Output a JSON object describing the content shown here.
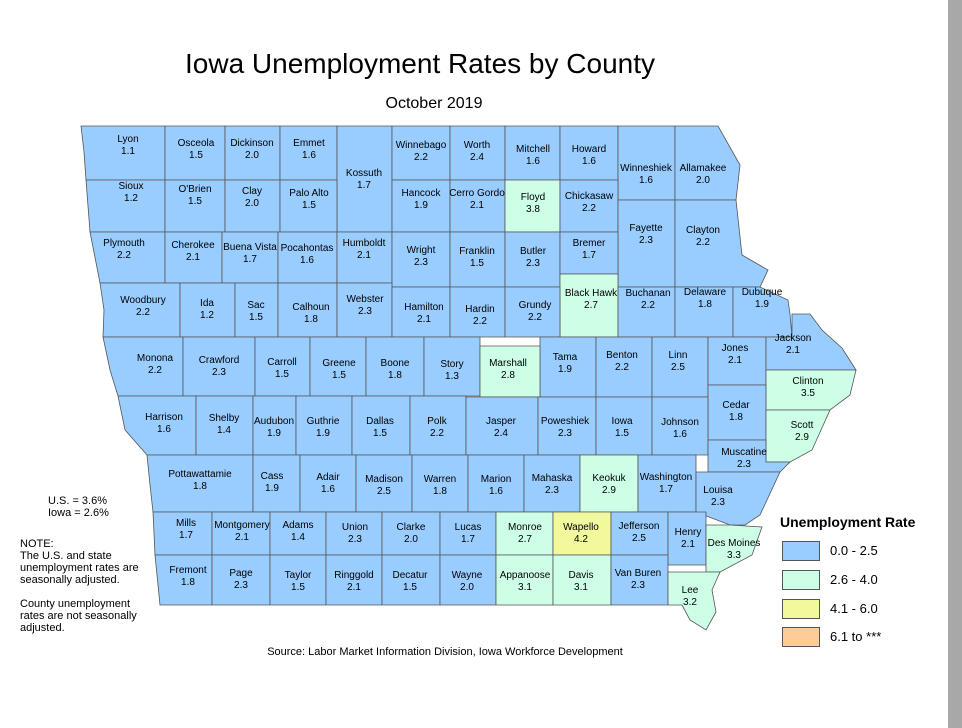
{
  "title": "Iowa Unemployment Rates by County",
  "subtitle": "October 2019",
  "rates": {
    "us": "U.S.  = 3.6%",
    "iowa": "Iowa = 2.6%"
  },
  "note": {
    "heading": "NOTE:",
    "line1": "The U.S. and state",
    "line2": "unemployment rates are",
    "line3": "seasonally adjusted.",
    "line4": "County unemployment",
    "line5": "rates are not seasonally",
    "line6": "adjusted."
  },
  "legend": {
    "title": "Unemployment Rate",
    "items": [
      {
        "label": "0.0 - 2.5",
        "color": "#99ccff"
      },
      {
        "label": "2.6 - 4.0",
        "color": "#ccffe6"
      },
      {
        "label": "4.1 - 6.0",
        "color": "#f2f99c"
      },
      {
        "label": "6.1 to ***",
        "color": "#ffcc99"
      }
    ]
  },
  "source": "Source: Labor Market Information Division, Iowa Workforce Development",
  "counties": [
    {
      "name": "Lyon",
      "value": "1.1"
    },
    {
      "name": "Osceola",
      "value": "1.5"
    },
    {
      "name": "Dickinson",
      "value": "2.0"
    },
    {
      "name": "Emmet",
      "value": "1.6"
    },
    {
      "name": "Kossuth",
      "value": "1.7"
    },
    {
      "name": "Winnebago",
      "value": "2.2"
    },
    {
      "name": "Worth",
      "value": "2.4"
    },
    {
      "name": "Mitchell",
      "value": "1.6"
    },
    {
      "name": "Howard",
      "value": "1.6"
    },
    {
      "name": "Winneshiek",
      "value": "1.6"
    },
    {
      "name": "Allamakee",
      "value": "2.0"
    },
    {
      "name": "Sioux",
      "value": "1.2"
    },
    {
      "name": "O'Brien",
      "value": "1.5"
    },
    {
      "name": "Clay",
      "value": "2.0"
    },
    {
      "name": "Palo Alto",
      "value": "1.5"
    },
    {
      "name": "Hancock",
      "value": "1.9"
    },
    {
      "name": "Cerro Gordo",
      "value": "2.1"
    },
    {
      "name": "Floyd",
      "value": "3.8"
    },
    {
      "name": "Chickasaw",
      "value": "2.2"
    },
    {
      "name": "Fayette",
      "value": "2.3"
    },
    {
      "name": "Clayton",
      "value": "2.2"
    },
    {
      "name": "Plymouth",
      "value": "2.2"
    },
    {
      "name": "Cherokee",
      "value": "2.1"
    },
    {
      "name": "Buena Vista",
      "value": "1.7"
    },
    {
      "name": "Pocahontas",
      "value": "1.6"
    },
    {
      "name": "Humboldt",
      "value": "2.1"
    },
    {
      "name": "Wright",
      "value": "2.3"
    },
    {
      "name": "Franklin",
      "value": "1.5"
    },
    {
      "name": "Butler",
      "value": "2.3"
    },
    {
      "name": "Bremer",
      "value": "1.7"
    },
    {
      "name": "Black Hawk",
      "value": "2.7"
    },
    {
      "name": "Buchanan",
      "value": "2.2"
    },
    {
      "name": "Delaware",
      "value": "1.8"
    },
    {
      "name": "Dubuque",
      "value": "1.9"
    },
    {
      "name": "Woodbury",
      "value": "2.2"
    },
    {
      "name": "Ida",
      "value": "1.2"
    },
    {
      "name": "Sac",
      "value": "1.5"
    },
    {
      "name": "Calhoun",
      "value": "1.8"
    },
    {
      "name": "Webster",
      "value": "2.3"
    },
    {
      "name": "Hamilton",
      "value": "2.1"
    },
    {
      "name": "Hardin",
      "value": "2.2"
    },
    {
      "name": "Grundy",
      "value": "2.2"
    },
    {
      "name": "Tama",
      "value": "1.9"
    },
    {
      "name": "Benton",
      "value": "2.2"
    },
    {
      "name": "Linn",
      "value": "2.5"
    },
    {
      "name": "Jones",
      "value": "2.1"
    },
    {
      "name": "Jackson",
      "value": "2.1"
    },
    {
      "name": "Monona",
      "value": "2.2"
    },
    {
      "name": "Crawford",
      "value": "2.3"
    },
    {
      "name": "Carroll",
      "value": "1.5"
    },
    {
      "name": "Greene",
      "value": "1.5"
    },
    {
      "name": "Boone",
      "value": "1.8"
    },
    {
      "name": "Story",
      "value": "1.3"
    },
    {
      "name": "Marshall",
      "value": "2.8"
    },
    {
      "name": "Clinton",
      "value": "3.5"
    },
    {
      "name": "Cedar",
      "value": "1.8"
    },
    {
      "name": "Harrison",
      "value": "1.6"
    },
    {
      "name": "Shelby",
      "value": "1.4"
    },
    {
      "name": "Audubon",
      "value": "1.9"
    },
    {
      "name": "Guthrie",
      "value": "1.9"
    },
    {
      "name": "Dallas",
      "value": "1.5"
    },
    {
      "name": "Polk",
      "value": "2.2"
    },
    {
      "name": "Jasper",
      "value": "2.4"
    },
    {
      "name": "Poweshiek",
      "value": "2.3"
    },
    {
      "name": "Iowa",
      "value": "1.5"
    },
    {
      "name": "Johnson",
      "value": "1.6"
    },
    {
      "name": "Scott",
      "value": "2.9"
    },
    {
      "name": "Muscatine",
      "value": "2.3"
    },
    {
      "name": "Pottawattamie",
      "value": "1.8"
    },
    {
      "name": "Cass",
      "value": "1.9"
    },
    {
      "name": "Adair",
      "value": "1.6"
    },
    {
      "name": "Madison",
      "value": "2.5"
    },
    {
      "name": "Warren",
      "value": "1.8"
    },
    {
      "name": "Marion",
      "value": "1.6"
    },
    {
      "name": "Mahaska",
      "value": "2.3"
    },
    {
      "name": "Keokuk",
      "value": "2.9"
    },
    {
      "name": "Washington",
      "value": "1.7"
    },
    {
      "name": "Louisa",
      "value": "2.3"
    },
    {
      "name": "Mills",
      "value": "1.7"
    },
    {
      "name": "Montgomery",
      "value": "2.1"
    },
    {
      "name": "Adams",
      "value": "1.4"
    },
    {
      "name": "Union",
      "value": "2.3"
    },
    {
      "name": "Clarke",
      "value": "2.0"
    },
    {
      "name": "Lucas",
      "value": "1.7"
    },
    {
      "name": "Monroe",
      "value": "2.7"
    },
    {
      "name": "Wapello",
      "value": "4.2"
    },
    {
      "name": "Jefferson",
      "value": "2.5"
    },
    {
      "name": "Henry",
      "value": "2.1"
    },
    {
      "name": "Des Moines",
      "value": "3.3"
    },
    {
      "name": "Fremont",
      "value": "1.8"
    },
    {
      "name": "Page",
      "value": "2.3"
    },
    {
      "name": "Taylor",
      "value": "1.5"
    },
    {
      "name": "Ringgold",
      "value": "2.1"
    },
    {
      "name": "Decatur",
      "value": "1.5"
    },
    {
      "name": "Wayne",
      "value": "2.0"
    },
    {
      "name": "Appanoose",
      "value": "3.1"
    },
    {
      "name": "Davis",
      "value": "3.1"
    },
    {
      "name": "Van Buren",
      "value": "2.3"
    },
    {
      "name": "Lee",
      "value": "3.2"
    }
  ]
}
